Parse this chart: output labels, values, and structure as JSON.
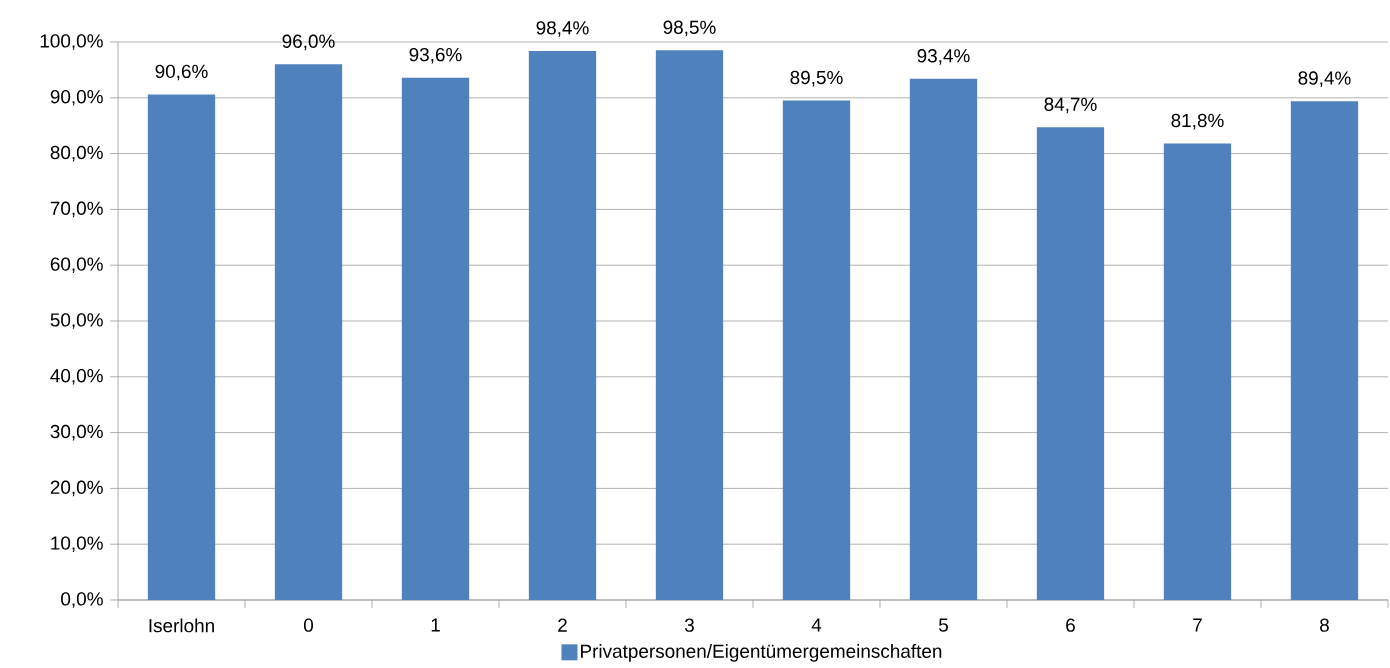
{
  "chart_data": {
    "type": "bar",
    "categories": [
      "Iserlohn",
      "0",
      "1",
      "2",
      "3",
      "4",
      "5",
      "6",
      "7",
      "8"
    ],
    "series": [
      {
        "name": "Privatpersonen/Eigentümergemeinschaften",
        "color": "#4f81bd",
        "values": [
          90.6,
          96.0,
          93.6,
          98.4,
          98.5,
          89.5,
          93.4,
          84.7,
          81.8,
          89.4
        ],
        "value_labels": [
          "90,6%",
          "96,0%",
          "93,6%",
          "98,4%",
          "98,5%",
          "89,5%",
          "93,4%",
          "84,7%",
          "81,8%",
          "89,4%"
        ]
      }
    ],
    "ylim": [
      0,
      100
    ],
    "yticks": [
      {
        "value": 0,
        "label": "0,0%"
      },
      {
        "value": 10,
        "label": "10,0%"
      },
      {
        "value": 20,
        "label": "20,0%"
      },
      {
        "value": 30,
        "label": "30,0%"
      },
      {
        "value": 40,
        "label": "40,0%"
      },
      {
        "value": 50,
        "label": "50,0%"
      },
      {
        "value": 60,
        "label": "60,0%"
      },
      {
        "value": 70,
        "label": "70,0%"
      },
      {
        "value": 80,
        "label": "80,0%"
      },
      {
        "value": 90,
        "label": "90,0%"
      },
      {
        "value": 100,
        "label": "100,0%"
      }
    ],
    "grid": "y",
    "legend": "bottom"
  }
}
